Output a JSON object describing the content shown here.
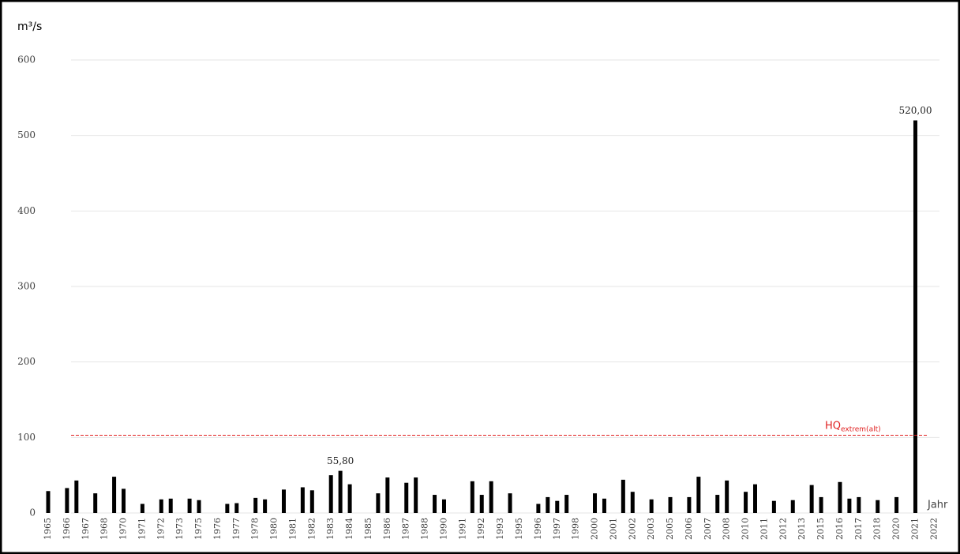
{
  "chart_data": {
    "type": "bar",
    "y_label": "m³/s",
    "x_label": "Jahr",
    "categories": [
      "1965",
      null,
      "1966",
      null,
      "1967",
      null,
      "1968",
      null,
      "1970",
      null,
      "1971",
      null,
      "1972",
      null,
      "1973",
      null,
      "1975",
      null,
      "1976",
      null,
      "1977",
      null,
      "1978",
      null,
      "1980",
      null,
      "1981",
      null,
      "1982",
      null,
      "1983",
      null,
      "1984",
      null,
      "1985",
      null,
      "1986",
      null,
      "1987",
      null,
      "1988",
      null,
      "1990",
      null,
      "1991",
      null,
      "1992",
      null,
      "1993",
      null,
      "1995",
      null,
      "1996",
      null,
      "1997",
      null,
      "1998",
      null,
      "2000",
      null,
      "2001",
      null,
      "2002",
      null,
      "2003",
      null,
      "2005",
      null,
      "2006",
      null,
      "2007",
      null,
      "2008",
      null,
      "2010",
      null,
      "2011",
      null,
      "2012",
      null,
      "2013",
      null,
      "2015",
      null,
      "2016",
      null,
      "2017",
      null,
      "2018",
      null,
      "2020",
      null,
      "2021",
      null,
      "2022"
    ],
    "values": [
      29,
      null,
      33,
      43,
      null,
      26,
      null,
      48,
      32,
      null,
      12,
      null,
      18,
      19,
      null,
      19,
      17,
      null,
      null,
      12,
      13,
      null,
      20,
      18,
      null,
      31,
      null,
      34,
      30,
      null,
      50,
      55.8,
      38,
      null,
      null,
      26,
      47,
      null,
      40,
      47,
      null,
      24,
      18,
      null,
      null,
      42,
      24,
      42,
      null,
      26,
      null,
      null,
      12,
      21,
      16,
      24,
      null,
      null,
      26,
      19,
      null,
      44,
      28,
      null,
      18,
      null,
      21,
      null,
      21,
      48,
      null,
      24,
      43,
      null,
      28,
      38,
      null,
      16,
      null,
      17,
      null,
      37,
      21,
      null,
      41,
      19,
      21,
      null,
      17,
      null,
      21,
      null,
      520,
      null,
      null
    ],
    "value_labels": [
      null,
      null,
      null,
      null,
      null,
      null,
      null,
      null,
      null,
      null,
      null,
      null,
      null,
      null,
      null,
      null,
      null,
      null,
      null,
      null,
      null,
      null,
      null,
      null,
      null,
      null,
      null,
      null,
      null,
      null,
      null,
      "55,80",
      null,
      null,
      null,
      null,
      null,
      null,
      null,
      null,
      null,
      null,
      null,
      null,
      null,
      null,
      null,
      null,
      null,
      null,
      null,
      null,
      null,
      null,
      null,
      null,
      null,
      null,
      null,
      null,
      null,
      null,
      null,
      null,
      null,
      null,
      null,
      null,
      null,
      null,
      null,
      null,
      null,
      null,
      null,
      null,
      null,
      null,
      null,
      null,
      null,
      null,
      null,
      null,
      null,
      null,
      null,
      null,
      null,
      null,
      null,
      null,
      "520,00",
      null,
      null
    ],
    "color": "#000000",
    "ylim": [
      0,
      600
    ],
    "yticks": [
      0,
      100,
      200,
      300,
      400,
      500,
      600
    ],
    "grid": true,
    "annotation": {
      "text": "HQ",
      "subscript": "extrem(alt)",
      "value": 103,
      "color": "#e02020"
    }
  }
}
